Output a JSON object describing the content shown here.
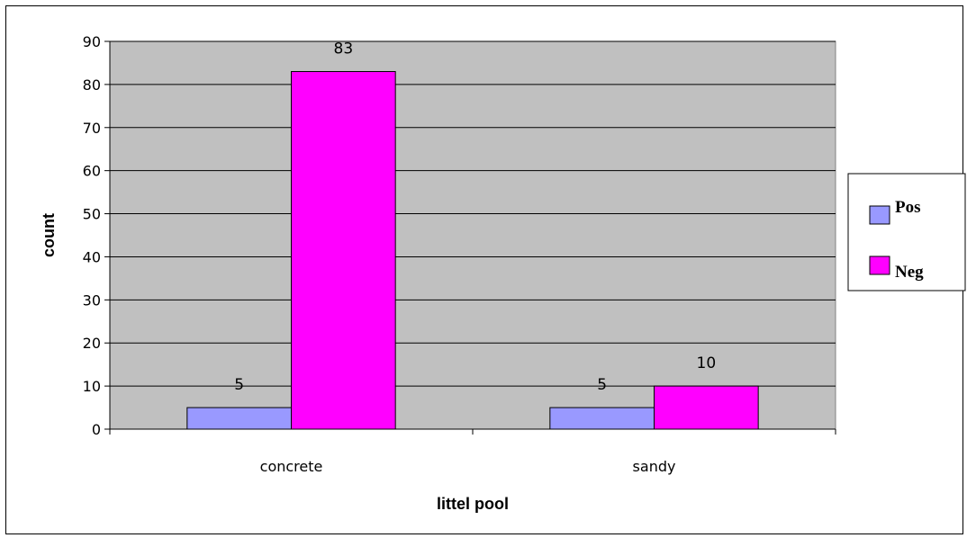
{
  "chart_data": {
    "type": "bar",
    "title": "",
    "xlabel": "littel pool",
    "ylabel": "count",
    "categories": [
      "concrete",
      "sandy"
    ],
    "series": [
      {
        "name": "Pos",
        "values": [
          5,
          5
        ],
        "color": "#9999FF"
      },
      {
        "name": "Neg",
        "values": [
          83,
          10
        ],
        "color": "#FF00FF"
      }
    ],
    "ylim": [
      0,
      90
    ],
    "yticks": [
      0,
      10,
      20,
      30,
      40,
      50,
      60,
      70,
      80,
      90
    ],
    "grid": true,
    "data_labels": true,
    "legend_position": "right",
    "plot_background": "#C0C0C0"
  }
}
